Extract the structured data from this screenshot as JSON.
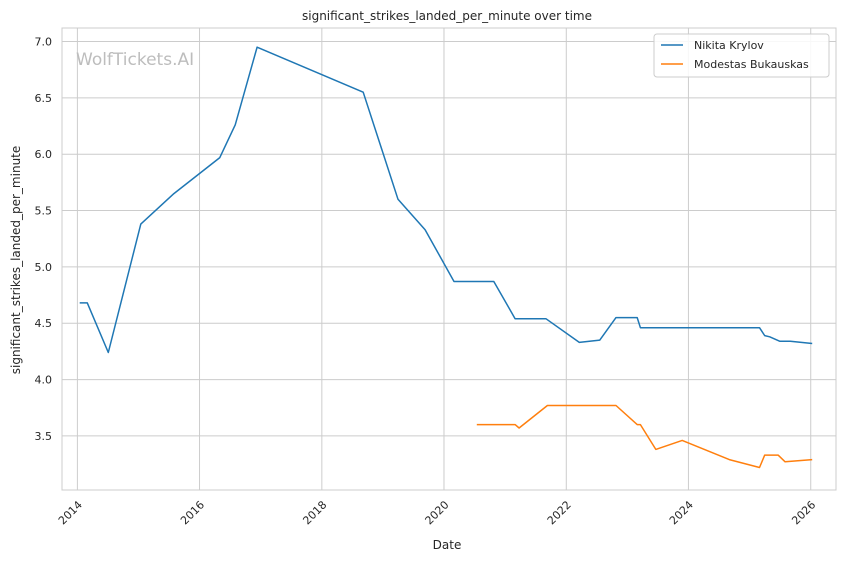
{
  "chart_data": {
    "type": "line",
    "title": "significant_strikes_landed_per_minute over time",
    "xlabel": "Date",
    "ylabel": "significant_strikes_landed_per_minute",
    "watermark": "WolfTickets.AI",
    "grid": true,
    "legend_position": "top-right",
    "xlim": [
      "2013-10-01",
      "2026-06-01"
    ],
    "ylim": [
      3.02,
      7.12
    ],
    "x_ticks": [
      "2014-01-01",
      "2016-01-01",
      "2018-01-01",
      "2020-01-01",
      "2022-01-01",
      "2024-01-01",
      "2026-01-01"
    ],
    "x_tick_labels": [
      "2014",
      "2016",
      "2018",
      "2020",
      "2022",
      "2024",
      "2026"
    ],
    "y_ticks": [
      3.5,
      4.0,
      4.5,
      5.0,
      5.5,
      6.0,
      6.5,
      7.0
    ],
    "y_tick_labels": [
      "3.5",
      "4.0",
      "4.5",
      "5.0",
      "5.5",
      "6.0",
      "6.5",
      "7.0"
    ],
    "series": [
      {
        "name": "Nikita Krylov",
        "color": "#1f77b4",
        "x": [
          "2014-01-15",
          "2014-03-01",
          "2014-07-05",
          "2015-01-15",
          "2015-08-01",
          "2016-05-01",
          "2016-08-01",
          "2016-12-10",
          "2018-09-05",
          "2019-04-01",
          "2019-09-10",
          "2020-03-01",
          "2020-10-25",
          "2021-03-01",
          "2021-09-01",
          "2022-03-20",
          "2022-07-20",
          "2022-10-25",
          "2023-03-01",
          "2023-03-20",
          "2025-03-01",
          "2025-04-01",
          "2025-05-01",
          "2025-07-01",
          "2025-09-01",
          "2026-01-10"
        ],
        "y": [
          4.68,
          4.68,
          4.24,
          5.38,
          5.65,
          5.97,
          6.26,
          6.95,
          6.55,
          5.6,
          5.33,
          4.87,
          4.87,
          4.54,
          4.54,
          4.33,
          4.35,
          4.55,
          4.55,
          4.46,
          4.46,
          4.39,
          4.38,
          4.34,
          4.34,
          4.32
        ]
      },
      {
        "name": "Modestas Bukauskas",
        "color": "#ff7f0e",
        "x": [
          "2020-07-15",
          "2021-03-01",
          "2021-03-25",
          "2021-09-10",
          "2022-10-25",
          "2023-03-01",
          "2023-03-20",
          "2023-06-20",
          "2023-11-25",
          "2024-09-01",
          "2025-03-01",
          "2025-04-01",
          "2025-06-20",
          "2025-08-01",
          "2026-01-10"
        ],
        "y": [
          3.6,
          3.6,
          3.57,
          3.77,
          3.77,
          3.6,
          3.6,
          3.38,
          3.46,
          3.29,
          3.22,
          3.33,
          3.33,
          3.27,
          3.29
        ]
      }
    ]
  }
}
